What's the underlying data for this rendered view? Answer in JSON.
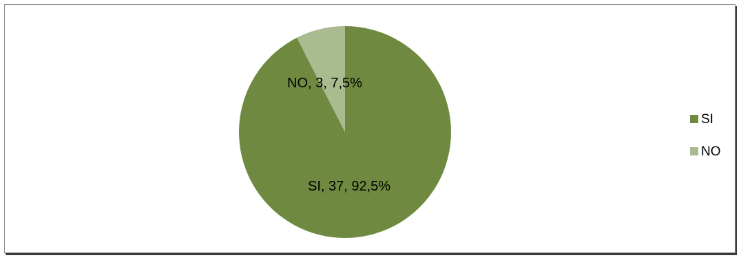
{
  "chart_data": {
    "type": "pie",
    "title": "",
    "slices": [
      {
        "name": "SI",
        "value": 37,
        "percent": "92,5%",
        "label": "SI, 37, 92,5%",
        "color": "#6f8a40"
      },
      {
        "name": "NO",
        "value": 3,
        "percent": "7,5%",
        "label": "NO, 3, 7,5%",
        "color": "#a9bb8f"
      }
    ],
    "legend": {
      "position": "right",
      "items": [
        {
          "label": "SI",
          "color": "#6f8a40"
        },
        {
          "label": "NO",
          "color": "#a9bb8f"
        }
      ]
    }
  }
}
